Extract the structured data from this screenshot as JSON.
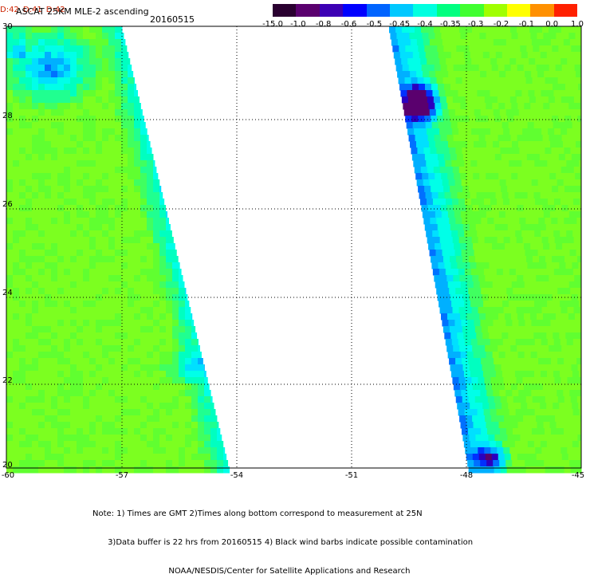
{
  "title": "ASCAT 25KM MLE-2 ascending",
  "date": "20160515",
  "colorbar": {
    "labels": [
      "-15.0",
      "-1.0",
      "-0.8",
      "-0.6",
      "-0.5",
      "-0.45",
      "-0.4",
      "-0.35",
      "-0.3",
      "-0.2",
      "-0.1",
      "0.0",
      "1.0"
    ],
    "colors": [
      "#2a0030",
      "#5a006e",
      "#3c00b4",
      "#0000ff",
      "#0064ff",
      "#00c8ff",
      "#00ffe0",
      "#00ff80",
      "#40ff30",
      "#a0ff00",
      "#ffff00",
      "#ff9000",
      "#ff2000"
    ]
  },
  "axes": {
    "lat_ticks": [
      "30",
      "28",
      "26",
      "24",
      "22",
      "20"
    ],
    "lon_ticks": [
      "-60",
      "-57",
      "-54",
      "-51",
      "-48",
      "-45"
    ],
    "time_labels": [
      "D:42",
      "D:41",
      "D:42"
    ]
  },
  "note_lines": [
    "Note: 1) Times are GMT 2)Times along bottom correspond to measurement at 25N",
    "      3)Data buffer is 22 hrs from 20160515 4) Black wind barbs indicate possible contamination",
    "                              NOAA/NESDIS/Center for Satellite Applications and Research"
  ],
  "colors": {
    "no_data": "#ffffff",
    "grid": "#000000",
    "time_label": "#cc2200"
  }
}
